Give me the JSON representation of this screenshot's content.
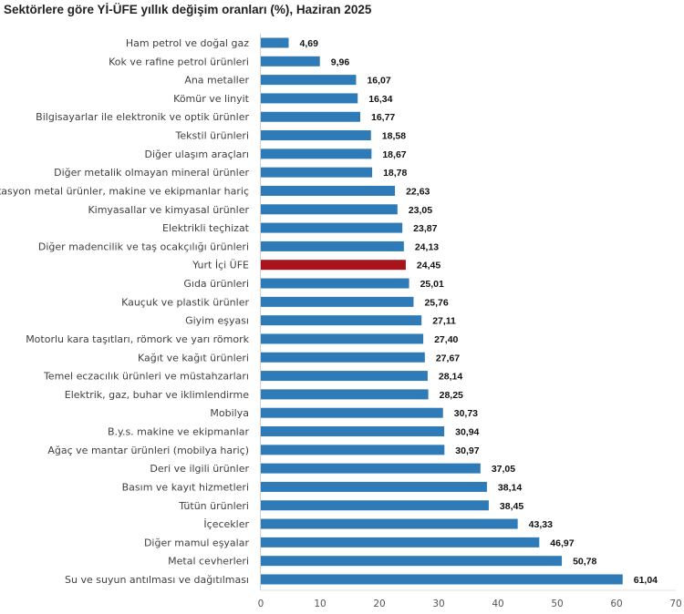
{
  "chart_data": {
    "type": "bar",
    "orientation": "horizontal",
    "title": "Sektörlere göre Yİ-ÜFE yıllık değişim oranları (%), Haziran 2025",
    "xlabel": "",
    "ylabel": "",
    "xlim": [
      0,
      70
    ],
    "xticks": [
      0,
      10,
      20,
      30,
      40,
      50,
      60,
      70
    ],
    "grid": false,
    "legend": "none",
    "colors": {
      "default": "#2e7bb8",
      "highlight": "#a8141c"
    },
    "highlight_category": "Yurt İçi ÜFE",
    "categories": [
      "Ham petrol ve doğal gaz",
      "Kok ve rafine petrol ürünleri",
      "Ana metaller",
      "Kömür ve linyit",
      "Bilgisayarlar ile elektronik ve optik ürünler",
      "Tekstil ürünleri",
      "Diğer ulaşım araçları",
      "Diğer metalik olmayan mineral ürünler",
      "Fabrikasyon metal ürünler, makine ve ekipmanlar hariç",
      "Kimyasallar ve kimyasal ürünler",
      "Elektrikli teçhizat",
      "Diğer madencilik ve taş ocakçılığı ürünleri",
      "Yurt İçi ÜFE",
      "Gıda ürünleri",
      "Kauçuk ve plastik ürünler",
      "Giyim eşyası",
      "Motorlu kara taşıtları, römork ve yarı römork",
      "Kağıt ve kağıt ürünleri",
      "Temel eczacılık ürünleri ve müstahzarları",
      "Elektrik, gaz, buhar ve iklimlendirme",
      "Mobilya",
      "B.y.s. makine ve ekipmanlar",
      "Ağaç ve mantar ürünleri (mobilya hariç)",
      "Deri ve ilgili ürünler",
      "Basım ve kayıt hizmetleri",
      "Tütün ürünleri",
      "İçecekler",
      "Diğer mamul eşyalar",
      "Metal cevherleri",
      "Su ve suyun antılması ve dağıtılması"
    ],
    "values": [
      4.69,
      9.96,
      16.07,
      16.34,
      16.77,
      18.58,
      18.67,
      18.78,
      22.63,
      23.05,
      23.87,
      24.13,
      24.45,
      25.01,
      25.76,
      27.11,
      27.4,
      27.67,
      28.14,
      28.25,
      30.73,
      30.94,
      30.97,
      37.05,
      38.14,
      38.45,
      43.33,
      46.97,
      50.78,
      61.04
    ],
    "value_labels": [
      "4,69",
      "9,96",
      "16,07",
      "16,34",
      "16,77",
      "18,58",
      "18,67",
      "18,78",
      "22,63",
      "23,05",
      "23,87",
      "24,13",
      "24,45",
      "25,01",
      "25,76",
      "27,11",
      "27,40",
      "27,67",
      "28,14",
      "28,25",
      "30,73",
      "30,94",
      "30,97",
      "37,05",
      "38,14",
      "38,45",
      "43,33",
      "46,97",
      "50,78",
      "61,04"
    ]
  }
}
